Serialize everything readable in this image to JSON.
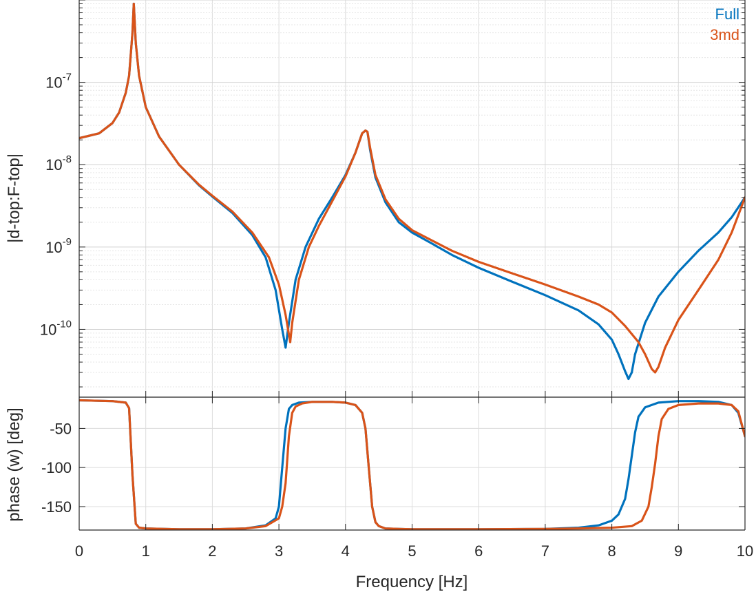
{
  "chart_data": [
    {
      "type": "line",
      "subplot": "magnitude",
      "title": "",
      "xlabel": "",
      "ylabel": "|d-top:F-top|",
      "yscale": "log",
      "xlim": [
        0,
        10
      ],
      "ylim": [
        1.5e-11,
        1e-06
      ],
      "grid": true,
      "minor_grid": true,
      "ytick_labels": [
        {
          "value": 1e-10,
          "base": "10",
          "exp": "-10"
        },
        {
          "value": 1e-09,
          "base": "10",
          "exp": "-9"
        },
        {
          "value": 1e-08,
          "base": "10",
          "exp": "-8"
        },
        {
          "value": 1e-07,
          "base": "10",
          "exp": "-7"
        }
      ],
      "legend": {
        "placement": "top-right",
        "entries": [
          "Full",
          "3md"
        ]
      },
      "series": [
        {
          "name": "Full",
          "color": "#0072BD",
          "x": [
            0,
            0.3,
            0.5,
            0.6,
            0.7,
            0.75,
            0.8,
            0.82,
            0.85,
            0.9,
            1.0,
            1.2,
            1.5,
            1.8,
            2.0,
            2.3,
            2.6,
            2.8,
            2.95,
            3.05,
            3.1,
            3.15,
            3.25,
            3.4,
            3.6,
            3.8,
            4.0,
            4.15,
            4.25,
            4.3,
            4.33,
            4.37,
            4.45,
            4.6,
            4.8,
            5.0,
            5.3,
            5.6,
            6.0,
            6.5,
            7.0,
            7.5,
            7.8,
            8.0,
            8.1,
            8.2,
            8.25,
            8.3,
            8.35,
            8.5,
            8.7,
            9.0,
            9.3,
            9.6,
            9.8,
            10.0
          ],
          "y": [
            2.1e-08,
            2.4e-08,
            3.2e-08,
            4.3e-08,
            7.5e-08,
            1.2e-07,
            4e-07,
            9e-07,
            3e-07,
            1.2e-07,
            5e-08,
            2.2e-08,
            1e-08,
            5.6e-09,
            4.1e-09,
            2.6e-09,
            1.4e-09,
            7.5e-10,
            3e-10,
            1e-10,
            6e-11,
            1.2e-10,
            4e-10,
            1e-09,
            2.2e-09,
            4e-09,
            7.5e-09,
            1.4e-08,
            2.4e-08,
            2.6e-08,
            2.5e-08,
            1.5e-08,
            7e-09,
            3.5e-09,
            2e-09,
            1.5e-09,
            1.1e-09,
            8e-10,
            5.6e-10,
            3.8e-10,
            2.6e-10,
            1.7e-10,
            1.15e-10,
            7.5e-11,
            5e-11,
            3.1e-11,
            2.5e-11,
            3e-11,
            5e-11,
            1.2e-10,
            2.5e-10,
            5e-10,
            9e-10,
            1.5e-09,
            2.3e-09,
            4e-09
          ]
        },
        {
          "name": "3md",
          "color": "#D95319",
          "x": [
            0,
            0.3,
            0.5,
            0.6,
            0.7,
            0.75,
            0.8,
            0.82,
            0.85,
            0.9,
            1.0,
            1.2,
            1.5,
            1.8,
            2.0,
            2.3,
            2.6,
            2.85,
            3.0,
            3.1,
            3.17,
            3.2,
            3.3,
            3.45,
            3.6,
            3.8,
            4.0,
            4.15,
            4.25,
            4.3,
            4.33,
            4.37,
            4.45,
            4.6,
            4.8,
            5.0,
            5.3,
            5.6,
            6.0,
            6.5,
            7.0,
            7.5,
            7.8,
            8.0,
            8.2,
            8.4,
            8.5,
            8.6,
            8.65,
            8.7,
            8.8,
            9.0,
            9.3,
            9.6,
            9.8,
            10.0
          ],
          "y": [
            2.1e-08,
            2.4e-08,
            3.2e-08,
            4.3e-08,
            7.5e-08,
            1.2e-07,
            4e-07,
            9e-07,
            3e-07,
            1.2e-07,
            5e-08,
            2.2e-08,
            1e-08,
            5.7e-09,
            4.2e-09,
            2.7e-09,
            1.5e-09,
            7.5e-10,
            3.5e-10,
            1.5e-10,
            7e-11,
            1.2e-10,
            4e-10,
            1e-09,
            1.8e-09,
            3.6e-09,
            7.2e-09,
            1.4e-08,
            2.4e-08,
            2.6e-08,
            2.5e-08,
            1.6e-08,
            7.5e-09,
            3.8e-09,
            2.2e-09,
            1.6e-09,
            1.2e-09,
            9e-10,
            6.6e-10,
            4.8e-10,
            3.5e-10,
            2.5e-10,
            2e-10,
            1.6e-10,
            1.1e-10,
            7e-11,
            5e-11,
            3.3e-11,
            3e-11,
            3.5e-11,
            6e-11,
            1.3e-10,
            3e-10,
            7e-10,
            1.5e-09,
            4e-09
          ]
        }
      ]
    },
    {
      "type": "line",
      "subplot": "phase",
      "title": "",
      "xlabel": "Frequency [Hz]",
      "ylabel": "phase (w) [deg]",
      "xlim": [
        0,
        10
      ],
      "ylim": [
        -180,
        -10
      ],
      "grid": true,
      "xticks": [
        0,
        1,
        2,
        3,
        4,
        5,
        6,
        7,
        8,
        9,
        10
      ],
      "yticks": [
        -150,
        -100,
        -50
      ],
      "series": [
        {
          "name": "Full",
          "color": "#0072BD",
          "x": [
            0,
            0.5,
            0.7,
            0.75,
            0.8,
            0.85,
            0.9,
            1.0,
            1.5,
            2.0,
            2.5,
            2.8,
            2.95,
            3.0,
            3.05,
            3.1,
            3.15,
            3.2,
            3.3,
            3.5,
            3.8,
            4.0,
            4.15,
            4.25,
            4.3,
            4.35,
            4.4,
            4.45,
            4.5,
            4.6,
            4.8,
            5.0,
            6.0,
            7.0,
            7.5,
            7.8,
            8.0,
            8.1,
            8.2,
            8.25,
            8.3,
            8.35,
            8.4,
            8.5,
            8.7,
            9.0,
            9.3,
            9.6,
            9.8,
            9.9,
            10.0
          ],
          "y": [
            -14,
            -15,
            -17,
            -24,
            -110,
            -172,
            -177,
            -178,
            -179,
            -179,
            -178,
            -174,
            -165,
            -150,
            -100,
            -50,
            -25,
            -20,
            -17,
            -16,
            -16,
            -17,
            -20,
            -30,
            -50,
            -100,
            -150,
            -170,
            -175,
            -178,
            -178.5,
            -179,
            -179,
            -178.5,
            -177,
            -174,
            -168,
            -160,
            -140,
            -115,
            -85,
            -55,
            -35,
            -23,
            -17,
            -15,
            -15,
            -16,
            -20,
            -30,
            -60
          ]
        },
        {
          "name": "3md",
          "color": "#D95319",
          "x": [
            0,
            0.5,
            0.7,
            0.75,
            0.8,
            0.85,
            0.9,
            1.0,
            1.5,
            2.0,
            2.5,
            2.8,
            3.0,
            3.05,
            3.1,
            3.15,
            3.2,
            3.25,
            3.35,
            3.5,
            3.8,
            4.0,
            4.15,
            4.25,
            4.3,
            4.35,
            4.4,
            4.45,
            4.5,
            4.6,
            4.8,
            5.0,
            6.0,
            7.0,
            7.5,
            8.0,
            8.3,
            8.45,
            8.55,
            8.6,
            8.65,
            8.7,
            8.75,
            8.85,
            9.0,
            9.3,
            9.6,
            9.8,
            9.9,
            10.0
          ],
          "y": [
            -14,
            -15,
            -17,
            -24,
            -110,
            -172,
            -177,
            -178,
            -179,
            -179,
            -178,
            -175,
            -165,
            -150,
            -120,
            -60,
            -30,
            -22,
            -18,
            -16,
            -16,
            -17,
            -20,
            -30,
            -50,
            -100,
            -150,
            -170,
            -175,
            -178,
            -178.5,
            -179,
            -179,
            -178.5,
            -178,
            -177,
            -175,
            -168,
            -150,
            -125,
            -95,
            -60,
            -38,
            -25,
            -20,
            -18,
            -18,
            -20,
            -28,
            -60
          ]
        }
      ]
    }
  ]
}
